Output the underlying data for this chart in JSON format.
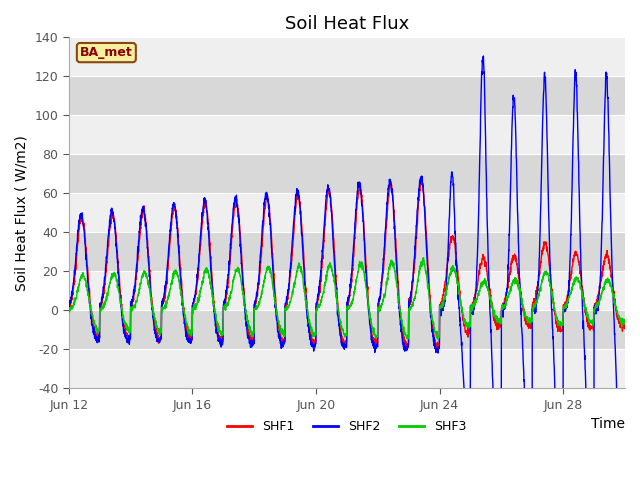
{
  "title": "Soil Heat Flux",
  "ylabel": "Soil Heat Flux ( W/m2)",
  "xlabel": "Time",
  "ylim": [
    -40,
    140
  ],
  "xlim_days": [
    0,
    18
  ],
  "annotation": "BA_met",
  "legend": [
    "SHF1",
    "SHF2",
    "SHF3"
  ],
  "colors": [
    "red",
    "blue",
    "#00cc00"
  ],
  "x_tick_labels": [
    "Jun 12",
    "Jun 16",
    "Jun 20",
    "Jun 24",
    "Jun 28"
  ],
  "x_tick_positions": [
    0,
    4,
    8,
    12,
    16
  ],
  "title_fontsize": 13,
  "label_fontsize": 10,
  "tick_fontsize": 9,
  "band1_color": "#efefef",
  "band2_color": "#d8d8d8"
}
